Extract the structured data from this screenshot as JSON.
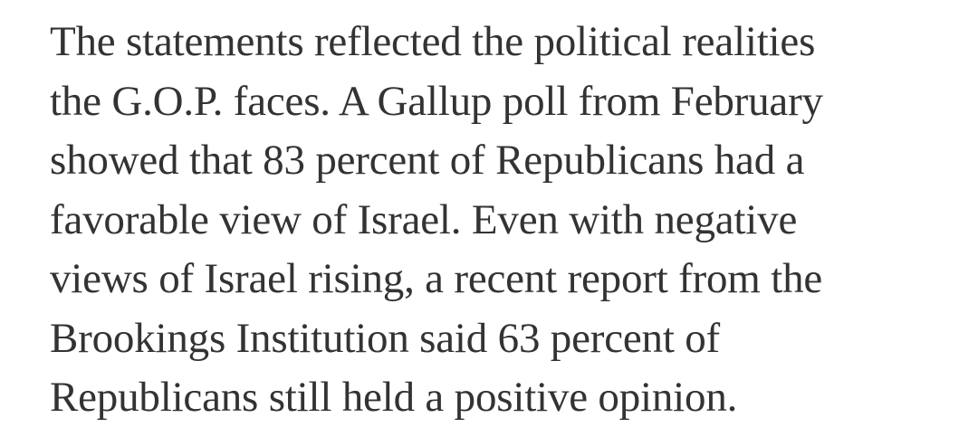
{
  "article": {
    "lines": [
      "The statements reflected the political realities",
      "the G.O.P. faces. A Gallup poll from February",
      "showed that 83 percent of Republicans had a",
      "favorable view of Israel. Even with negative",
      "views of Israel rising, a recent report from the",
      "Brookings Institution said 63 percent of",
      "Republicans still held a positive opinion."
    ]
  },
  "colors": {
    "background": "#ffffff",
    "text": "#333333"
  }
}
